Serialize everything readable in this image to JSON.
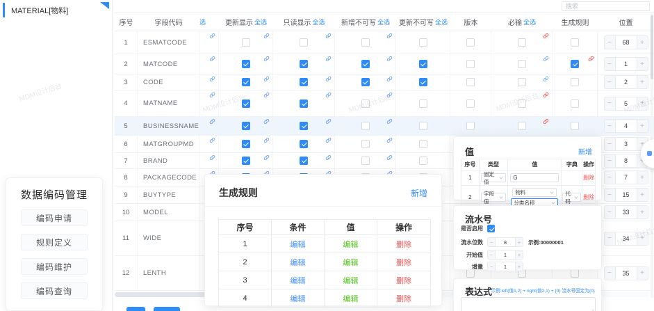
{
  "colors": {
    "accent_blue": "#2e8bf7",
    "link_blue": "#3f8cff",
    "icon_blue": "#7aa8f0",
    "danger_red": "#f25555",
    "icon_red": "#f0615c",
    "edit_green": "#52c41a",
    "selected_row_bg": "#eef5fc"
  },
  "watermark": {
    "text": "MDM设计后台"
  },
  "sidebar": {
    "header": "MATERIAL[物料]",
    "menu_title": "数据编码管理",
    "menu_items": [
      "编码申请",
      "规则定义",
      "编码维护",
      "编码查询"
    ]
  },
  "search": {
    "placeholder": "搜索"
  },
  "table": {
    "select_all_label": "全选",
    "columns": [
      {
        "key": "no",
        "label": "序号",
        "w": 33,
        "type": "text"
      },
      {
        "key": "code",
        "label": "字段代码",
        "w": 89,
        "type": "code"
      },
      {
        "key": "mini",
        "label": "选",
        "w": 28,
        "type": "mini",
        "clip": true
      },
      {
        "key": "update_show",
        "label": "更新显示",
        "w": 78,
        "type": "cb",
        "select_all": true,
        "icon": "blue"
      },
      {
        "key": "read_show",
        "label": "只读显示",
        "w": 89,
        "type": "cb",
        "select_all": true,
        "icon": "blue"
      },
      {
        "key": "add_ro",
        "label": "新增不可写",
        "w": 88,
        "type": "cb",
        "select_all": true,
        "icon": "blue"
      },
      {
        "key": "upd_ro",
        "label": "更新不可写",
        "w": 78,
        "type": "cb",
        "select_all": true,
        "icon": null
      },
      {
        "key": "version",
        "label": "版本",
        "w": 59,
        "type": "cb",
        "icon": null
      },
      {
        "key": "required",
        "label": "必输",
        "w": 88,
        "type": "cb",
        "select_all": true,
        "icon": "per-row"
      },
      {
        "key": "gen_rule",
        "label": "生成规则",
        "w": 65,
        "type": "cb",
        "icon": "per-row"
      },
      {
        "key": "pos",
        "label": "位置",
        "w": 81,
        "type": "stepper"
      }
    ],
    "rows": [
      {
        "no": "1",
        "code": "ESMATCODE",
        "h": 33,
        "selected": false,
        "checks": {
          "update_show": false,
          "read_show": false,
          "add_ro": false,
          "upd_ro": false,
          "version": false,
          "required": false,
          "gen_rule": false
        },
        "icons": {
          "required": "red",
          "gen_rule": null
        },
        "pos": "68"
      },
      {
        "no": "2",
        "code": "MATCODE",
        "h": 29,
        "selected": false,
        "checks": {
          "update_show": true,
          "read_show": true,
          "add_ro": true,
          "upd_ro": true,
          "version": false,
          "required": false,
          "gen_rule": true
        },
        "icons": {
          "required": "blue",
          "gen_rule": "red"
        },
        "pos": "1"
      },
      {
        "no": "3",
        "code": "CODE",
        "h": 23,
        "selected": false,
        "checks": {
          "update_show": true,
          "read_show": true,
          "add_ro": true,
          "upd_ro": true,
          "version": false,
          "required": false,
          "gen_rule": false
        },
        "icons": {
          "required": "blue",
          "gen_rule": null
        },
        "pos": "2"
      },
      {
        "no": "4",
        "code": "MATNAME",
        "h": 38,
        "selected": false,
        "checks": {
          "update_show": true,
          "read_show": true,
          "add_ro": false,
          "upd_ro": false,
          "version": false,
          "required": false,
          "gen_rule": false
        },
        "icons": {
          "required": "red",
          "gen_rule": null
        },
        "pos": "5"
      },
      {
        "no": "5",
        "code": "BUSINESSNAME",
        "h": 27,
        "selected": true,
        "checks": {
          "update_show": true,
          "read_show": true,
          "add_ro": false,
          "upd_ro": false,
          "version": false,
          "required": false,
          "gen_rule": false
        },
        "icons": {
          "required": "red",
          "gen_rule": null
        },
        "pos": "4"
      },
      {
        "no": "6",
        "code": "MATGROUPMD",
        "h": 25,
        "selected": false,
        "checks": {
          "update_show": true,
          "read_show": true,
          "add_ro": false,
          "upd_ro": false,
          "version": false,
          "required": false,
          "gen_rule": false
        },
        "icons": {
          "required": "blue",
          "gen_rule": null
        },
        "pos": "3"
      },
      {
        "no": "7",
        "code": "BRAND",
        "h": 23,
        "selected": false,
        "checks": {
          "update_show": true,
          "read_show": true,
          "add_ro": false,
          "upd_ro": false,
          "version": false,
          "required": false,
          "gen_rule": false
        },
        "icons": {
          "required": "blue",
          "gen_rule": null
        },
        "pos": "8"
      },
      {
        "no": "8",
        "code": "PACKAGECODE",
        "h": 25,
        "selected": false,
        "checks": {
          "update_show": true,
          "read_show": true,
          "add_ro": false,
          "upd_ro": false,
          "version": false,
          "required": false,
          "gen_rule": false
        },
        "icons": {
          "required": "blue",
          "gen_rule": null
        },
        "pos": "7"
      },
      {
        "no": "9",
        "code": "BUYTYPE",
        "h": 25,
        "selected": false,
        "checks": {
          "update_show": true,
          "read_show": true,
          "add_ro": false,
          "upd_ro": false,
          "version": false,
          "required": false,
          "gen_rule": false
        },
        "icons": {
          "required": "blue",
          "gen_rule": null
        },
        "pos": "15"
      },
      {
        "no": "10",
        "code": "MODEL",
        "h": 25,
        "selected": false,
        "checks": {
          "update_show": true,
          "read_show": true,
          "add_ro": false,
          "upd_ro": false,
          "version": false,
          "required": false,
          "gen_rule": false
        },
        "icons": {
          "required": "blue",
          "gen_rule": null
        },
        "pos": "33"
      },
      {
        "no": "11",
        "code": "WIDE",
        "h": 50,
        "selected": false,
        "checks": {
          "update_show": true,
          "read_show": true,
          "add_ro": false,
          "upd_ro": false,
          "version": false,
          "required": false,
          "gen_rule": false
        },
        "icons": {
          "required": "blue",
          "gen_rule": null
        },
        "pos": "34"
      },
      {
        "no": "12",
        "code": "LENTH",
        "h": 50,
        "selected": false,
        "checks": {
          "update_show": true,
          "read_show": true,
          "add_ro": false,
          "upd_ro": false,
          "version": false,
          "required": false,
          "gen_rule": false
        },
        "icons": {
          "required": "blue",
          "gen_rule": null
        },
        "pos": "35"
      }
    ]
  },
  "gen_rule_panel": {
    "title": "生成规则",
    "add_label": "新增",
    "columns": [
      "序号",
      "条件",
      "值",
      "操作"
    ],
    "rows": [
      {
        "no": "1",
        "cond": "编辑",
        "val": "编辑",
        "op": "删除"
      },
      {
        "no": "2",
        "cond": "编辑",
        "val": "编辑",
        "op": "删除"
      },
      {
        "no": "3",
        "cond": "编辑",
        "val": "编辑",
        "op": "删除"
      },
      {
        "no": "4",
        "cond": "编辑",
        "val": "编辑",
        "op": "删除"
      }
    ]
  },
  "value_panel": {
    "title": "值",
    "add_label": "新增",
    "columns": [
      "序号",
      "类型",
      "值",
      "字典",
      "操作"
    ],
    "rows": [
      {
        "no": "1",
        "kind": "fixed",
        "type": "固定值",
        "value": "G",
        "dict": "",
        "op": "删除"
      },
      {
        "no": "2",
        "kind": "field",
        "type": "字段值",
        "value_primary": "物料",
        "value_secondary": "分类名称",
        "dict": "代码",
        "op": "删除"
      }
    ]
  },
  "serial_panel": {
    "title": "流水号",
    "enable_label": "是否启用",
    "enabled": true,
    "digits_label": "流水位数",
    "digits": "8",
    "digits_hint": "示例:00000001",
    "start_label": "开始值",
    "start": "1",
    "step_label": "增量",
    "step": "1"
  },
  "expression_panel": {
    "title": "表达式",
    "hint": "示例:left(值1,2) + right(值2,1) + {0} 流水号固定为{0}",
    "value": ""
  }
}
